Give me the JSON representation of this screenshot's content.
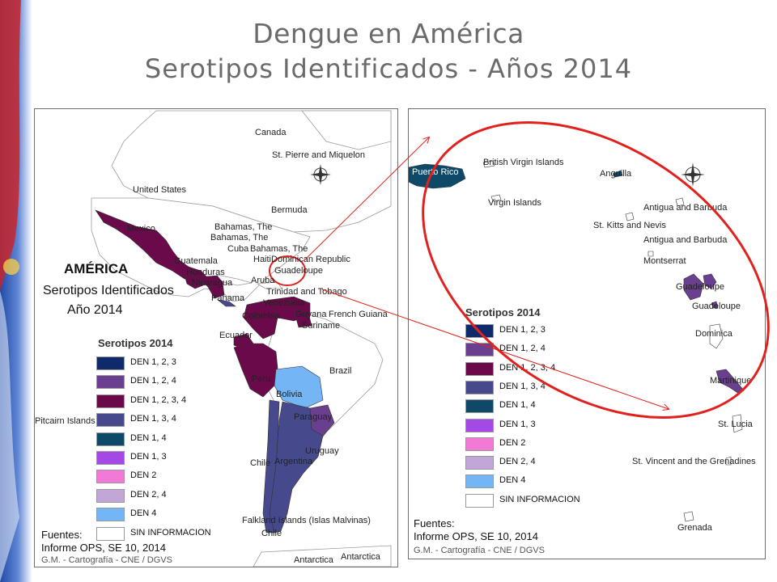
{
  "slide": {
    "title_line1": "Dengue en América",
    "title_line2": "Serotipos Identificados - Años 2014"
  },
  "colors": {
    "title": "#6b6b6b",
    "highlight_ellipse": "#e0211d",
    "connector": "#e0211d",
    "band_blue": "#1f4aa8",
    "band_red": "#c8262c"
  },
  "legend": {
    "title": "Serotipos 2014",
    "items": [
      {
        "label": "DEN 1, 2, 3",
        "color": "#0f2a6b"
      },
      {
        "label": "DEN 1, 2, 4",
        "color": "#6b3f8f"
      },
      {
        "label": "DEN 1, 2, 3, 4",
        "color": "#6a0a4a"
      },
      {
        "label": "DEN 1, 3, 4",
        "color": "#464a8c"
      },
      {
        "label": "DEN 1, 4",
        "color": "#0e4a68"
      },
      {
        "label": "DEN 1, 3",
        "color": "#a448e6"
      },
      {
        "label": "DEN 2",
        "color": "#f27ad6"
      },
      {
        "label": "DEN 2, 4",
        "color": "#c3a6d8"
      },
      {
        "label": "DEN 4",
        "color": "#74b5f5"
      },
      {
        "label": "SIN INFORMACION",
        "color": "#ffffff"
      }
    ]
  },
  "left_map": {
    "heading": "AMÉRICA",
    "subtitle_1": "Serotipos Identificados",
    "subtitle_2": "Año 2014",
    "sources_label": "Fuentes:",
    "sources_value": "Informe OPS, SE 10, 2014",
    "credit": "G.M. - Cartografía - CNE / DGVS",
    "labels": {
      "canada": "Canada",
      "st_pierre": "St. Pierre and Miquelon",
      "united_states": "United States",
      "bermuda": "Bermuda",
      "bahamas1": "Bahamas, The",
      "bahamas2": "Bahamas, The",
      "cuba": "Cuba",
      "bahamas3": "Bahamas, The",
      "haiti_dr": "HaitiDominican Republic",
      "guadeloupe": "Guadeloupe",
      "mexico": "Mexico",
      "guatemala": "Guatemala",
      "honduras": "Honduras",
      "nicaragua": "Nicaragua",
      "panama": "Panama",
      "aruba": "Aruba",
      "trinidad": "Trinidad and Tobago",
      "venezuela": "Venezuela",
      "colombia": "Colombia",
      "guyana": "Guyana",
      "french_guiana": "French Guiana",
      "suriname": "Suriname",
      "ecuador": "Ecuador",
      "brazil": "Brazil",
      "peru": "Peru",
      "bolivia": "Bolivia",
      "pitcairn": "Pitcairn Islands",
      "paraguay": "Paraguay",
      "uruguay": "Uruguay",
      "chile1": "Chile",
      "argentina": "Argentina",
      "falklands": "Falkland Islands (Islas Malvinas)",
      "chile2": "Chile",
      "antarctica1": "Antarctica",
      "antarctica2": "Antarctica"
    }
  },
  "right_map": {
    "legend_title": "Serotipos 2014",
    "sources_label": "Fuentes:",
    "sources_value": "Informe OPS, SE 10, 2014",
    "credit": "G.M. - Cartografía - CNE / DGVS",
    "labels": {
      "puerto_rico": "Puerto Rico",
      "bvi": "British Virgin Islands",
      "anguilla": "Anguilla",
      "virgin_islands": "Virgin Islands",
      "antigua1": "Antigua and Barbuda",
      "st_kitts": "St. Kitts and Nevis",
      "antigua2": "Antigua and Barbuda",
      "montserrat": "Montserrat",
      "guadeloupe1": "Guadeloupe",
      "guadeloupe2": "Guadeloupe",
      "dominica": "Dominica",
      "martinique": "Martinique",
      "st_lucia": "St. Lucia",
      "st_vincent": "St. Vincent and the Grenadines",
      "grenada": "Grenada"
    }
  }
}
